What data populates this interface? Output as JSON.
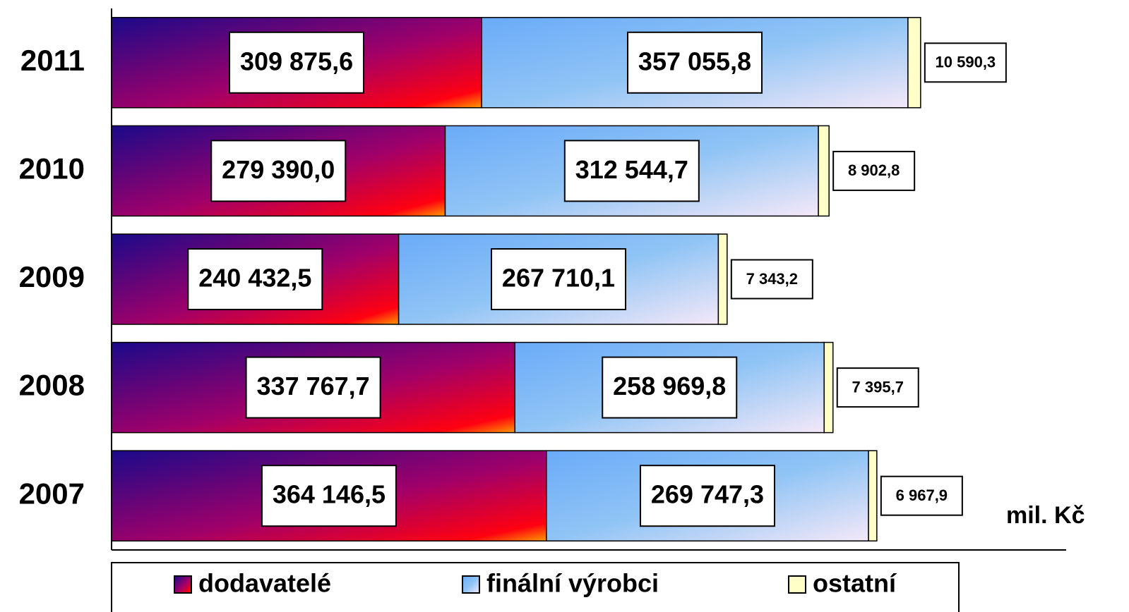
{
  "chart_data": {
    "type": "stacked-barh",
    "categories": [
      "2011",
      "2010",
      "2009",
      "2008",
      "2007"
    ],
    "series": [
      {
        "name": "dodavatelé",
        "color": "#a0006a",
        "values": [
          309875.6,
          279390.0,
          240432.5,
          337767.7,
          364146.5
        ],
        "value_labels": [
          "309 875,6",
          "279 390,0",
          "240 432,5",
          "337 767,7",
          "364 146,5"
        ]
      },
      {
        "name": "finální výrobci",
        "color": "#8fc4f5",
        "values": [
          357055.8,
          312544.7,
          267710.1,
          258969.8,
          269747.3
        ],
        "value_labels": [
          "357 055,8",
          "312 544,7",
          "267 710,1",
          "258 969,8",
          "269 747,3"
        ]
      },
      {
        "name": "ostatní",
        "color": "#ffffc8",
        "values": [
          10590.3,
          8902.8,
          7343.2,
          7395.7,
          6967.9
        ],
        "value_labels": [
          "10 590,3",
          "8 902,8",
          "7 343,2",
          "7 395,7",
          "6 967,9"
        ]
      }
    ],
    "xlabel": "mil. Kč",
    "xlim": [
      0,
      800000
    ],
    "legend": "bottom"
  }
}
